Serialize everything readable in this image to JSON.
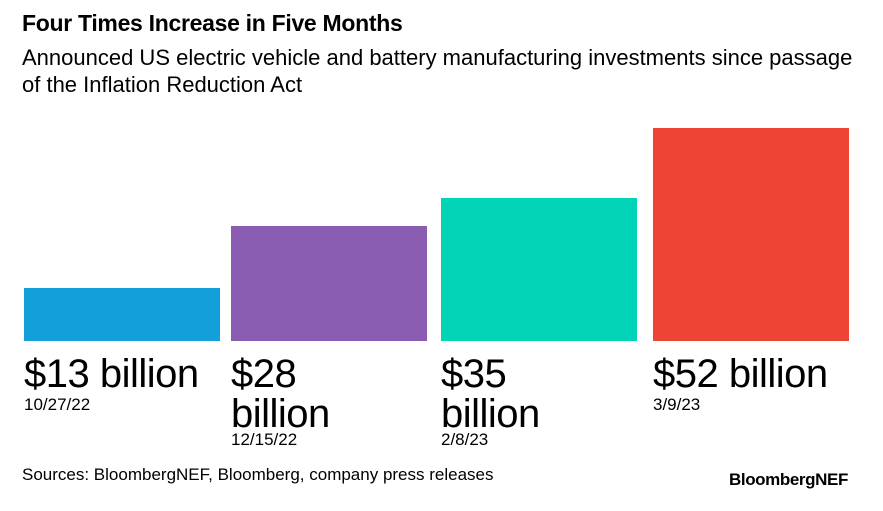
{
  "chart_data": {
    "type": "bar",
    "title": "Four Times Increase in Five Months",
    "subtitle": "Announced US electric vehicle and battery manufacturing investments since passage of the Inflation Reduction Act",
    "categories": [
      "10/27/22",
      "12/15/22",
      "2/8/23",
      "3/9/23"
    ],
    "values": [
      13,
      28,
      35,
      52
    ],
    "value_labels": [
      "$13 billion",
      "$28 billion",
      "$35 billion",
      "$52 billion"
    ],
    "unit": "billion USD",
    "colors": [
      "#139fda",
      "#8a5db3",
      "#00d3b6",
      "#ee4436"
    ],
    "xlabel": "",
    "ylabel": "",
    "grid": false
  },
  "footer": {
    "sources": "Sources: BloombergNEF, Bloomberg, company press releases",
    "brand": "BloombergNEF"
  }
}
